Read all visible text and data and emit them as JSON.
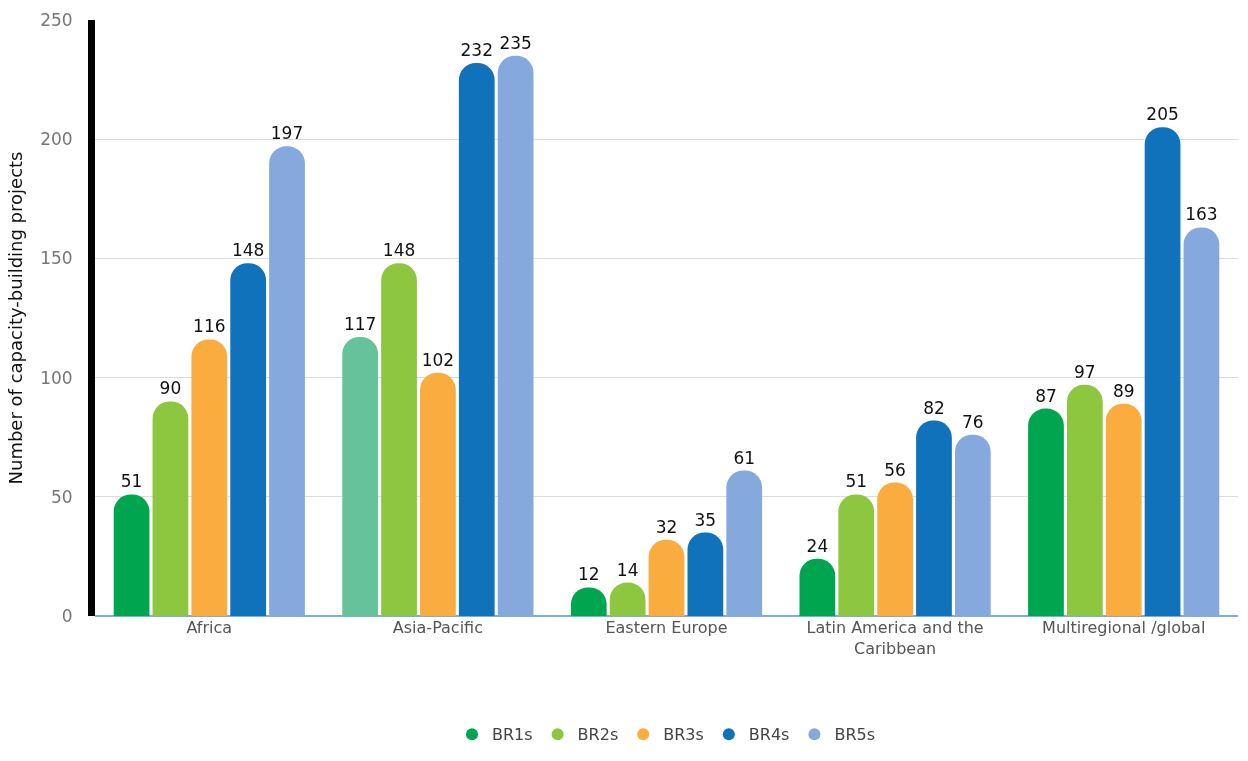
{
  "chart_data": {
    "type": "bar",
    "ylabel": "Number of capacity-building projects",
    "categories": [
      "Africa",
      "Asia-Pacific",
      "Eastern Europe",
      "Latin America and the Caribbean",
      "Multiregional /global"
    ],
    "series": [
      {
        "name": "BR1s",
        "color": "#00a550",
        "colors": [
          "#00a550",
          "#66c29a",
          "#00a550",
          "#00a550",
          "#00a550"
        ],
        "values": [
          51,
          117,
          12,
          24,
          87
        ]
      },
      {
        "name": "BR2s",
        "color": "#8dc63f",
        "values": [
          90,
          148,
          14,
          51,
          97
        ]
      },
      {
        "name": "BR3s",
        "color": "#fbac3f",
        "values": [
          116,
          102,
          32,
          56,
          89
        ]
      },
      {
        "name": "BR4s",
        "color": "#0f72bb",
        "values": [
          148,
          232,
          35,
          82,
          205
        ]
      },
      {
        "name": "BR5s",
        "color": "#85a9dc",
        "values": [
          197,
          235,
          61,
          76,
          163
        ]
      }
    ],
    "ylim": [
      0,
      250
    ],
    "yticks": [
      0,
      50,
      100,
      150,
      200,
      250
    ],
    "grid": "y",
    "legend": "bottom",
    "data_labels": true
  }
}
